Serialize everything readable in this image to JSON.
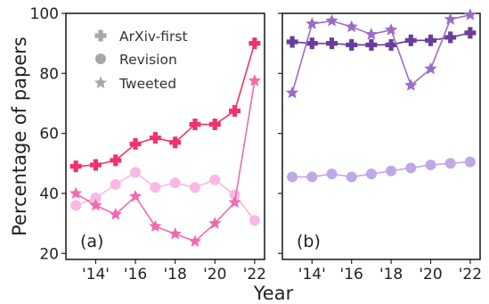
{
  "chart_data": {
    "type": "line",
    "ylabel": "Percentage of papers",
    "xlabel": "Year",
    "ylim": [
      18,
      100
    ],
    "xlim": [
      2012.5,
      2022.5
    ],
    "yticks": [
      20,
      40,
      60,
      80,
      100
    ],
    "xticks": [
      {
        "value": 2014,
        "label": "'14'"
      },
      {
        "value": 2016,
        "label": "'16"
      },
      {
        "value": 2018,
        "label": "'18"
      },
      {
        "value": 2020,
        "label": "'20"
      },
      {
        "value": 2022,
        "label": "'22"
      }
    ],
    "grid": false,
    "legend": {
      "location": "upper-left of panel (a)",
      "entries": [
        {
          "name": "ArXiv-first",
          "marker": "plus"
        },
        {
          "name": "Revision",
          "marker": "circle"
        },
        {
          "name": "Tweeted",
          "marker": "star"
        }
      ]
    },
    "panels": [
      {
        "label": "(a)",
        "series": [
          {
            "name": "ArXiv-first",
            "marker": "plus",
            "color": "#f0336e",
            "x": [
              2013,
              2014,
              2015,
              2016,
              2017,
              2018,
              2019,
              2020,
              2021,
              2022
            ],
            "values": [
              49,
              49.5,
              51,
              56.5,
              58.5,
              57,
              63,
              63,
              67.5,
              90
            ]
          },
          {
            "name": "Revision",
            "marker": "circle",
            "color": "#f9b8e3",
            "x": [
              2013,
              2014,
              2015,
              2016,
              2017,
              2018,
              2019,
              2020,
              2021,
              2022
            ],
            "values": [
              36,
              38.5,
              43,
              47,
              42,
              43.5,
              42,
              44.5,
              39.5,
              31
            ]
          },
          {
            "name": "Tweeted",
            "marker": "star",
            "color": "#f06aae",
            "x": [
              2013,
              2014,
              2015,
              2016,
              2017,
              2018,
              2019,
              2020,
              2021,
              2022
            ],
            "values": [
              40,
              36,
              33,
              39,
              29,
              26.5,
              24,
              30,
              37,
              77.5
            ]
          }
        ]
      },
      {
        "label": "(b)",
        "series": [
          {
            "name": "ArXiv-first",
            "marker": "plus",
            "color": "#6a3d9a",
            "x": [
              2013,
              2014,
              2015,
              2016,
              2017,
              2018,
              2019,
              2020,
              2021,
              2022
            ],
            "values": [
              90.5,
              90,
              90,
              89.5,
              89.5,
              89.5,
              91,
              91,
              92,
              93.5
            ]
          },
          {
            "name": "Revision",
            "marker": "circle",
            "color": "#c0a8e6",
            "x": [
              2013,
              2014,
              2015,
              2016,
              2017,
              2018,
              2019,
              2020,
              2021,
              2022
            ],
            "values": [
              45.5,
              45.5,
              46.5,
              45.5,
              46.5,
              47.5,
              48.5,
              49.5,
              50,
              50.5
            ]
          },
          {
            "name": "Tweeted",
            "marker": "star",
            "color": "#9b6cc8",
            "x": [
              2013,
              2014,
              2015,
              2016,
              2017,
              2018,
              2019,
              2020,
              2021,
              2022
            ],
            "values": [
              73.5,
              96.5,
              97.5,
              95.5,
              93,
              94.5,
              76,
              81.5,
              98,
              99.5
            ]
          }
        ]
      }
    ]
  }
}
